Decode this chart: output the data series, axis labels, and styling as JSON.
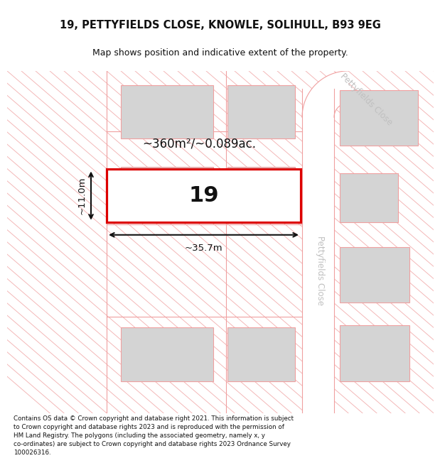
{
  "title_line1": "19, PETTYFIELDS CLOSE, KNOWLE, SOLIHULL, B93 9EG",
  "title_line2": "Map shows position and indicative extent of the property.",
  "footer_text": "Contains OS data © Crown copyright and database right 2021. This information is subject\nto Crown copyright and database rights 2023 and is reproduced with the permission of\nHM Land Registry. The polygons (including the associated geometry, namely x, y\nco-ordinates) are subject to Crown copyright and database rights 2023 Ordnance Survey\n100026316.",
  "area_label": "~360m²/~0.089ac.",
  "plot_number": "19",
  "width_label": "~35.7m",
  "height_label": "~11.0m",
  "bg_color": "#ffffff",
  "map_bg_color": "#fdf6f6",
  "plot_fill": "#ffffff",
  "plot_border_color": "#dd0000",
  "road_pink": "#f0a0a0",
  "road_fill": "#ffffff",
  "building_fill": "#d4d4d4",
  "dim_color": "#111111",
  "road_label_color": "#c0c0c0",
  "title_font_size": 10.5,
  "subtitle_font_size": 9.0,
  "footer_font_size": 6.3,
  "area_font_size": 12,
  "plot_num_font_size": 22,
  "dim_font_size": 9.5,
  "road_label_font_size": 8.5
}
